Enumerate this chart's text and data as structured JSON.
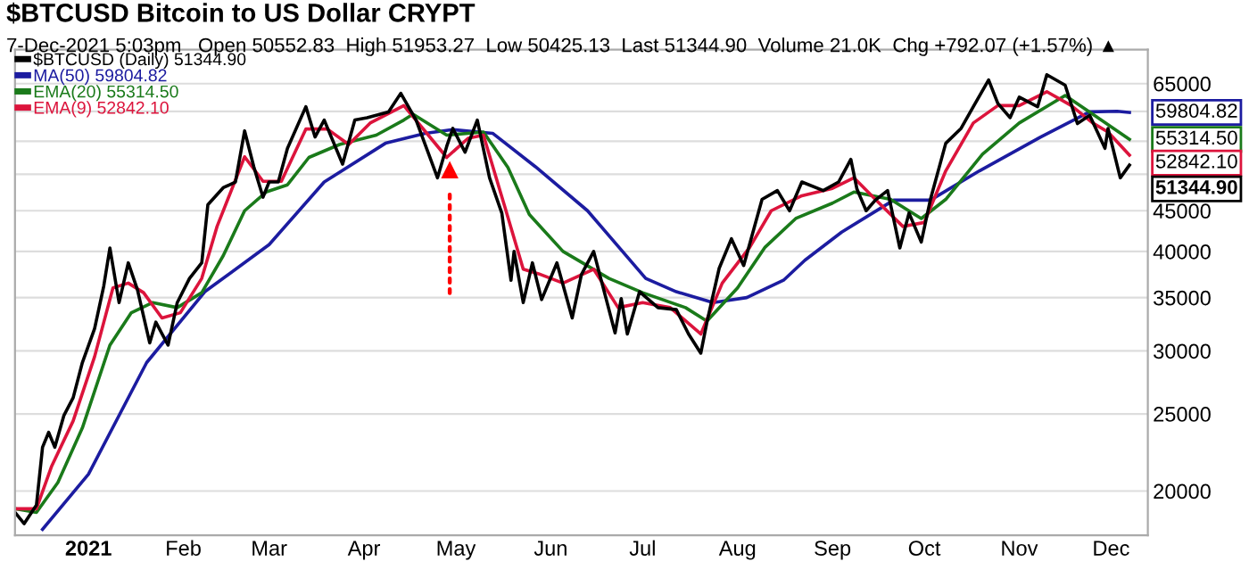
{
  "chart_data": {
    "type": "line",
    "title": "$BTCUSD Bitcoin to US Dollar CRYPT",
    "subtitle": "7-Dec-2021 5:03pm   Open 50552.83  High 51953.27  Low 50425.13  Last 51344.90  Volume 21.0K  Chg +792.07 (+1.57%) ▲",
    "log": "y",
    "grid": "y",
    "legend": "top left",
    "marker": "none",
    "line_style": "solid",
    "xlim": [
      "2020-12-08",
      "2021-12-13"
    ],
    "ylim": [
      17600,
      71700
    ],
    "xticks": [
      {
        "value": "2021-01-01",
        "label": "2021"
      },
      {
        "value": "2021-02-01",
        "label": "Feb"
      },
      {
        "value": "2021-03-01",
        "label": "Mar"
      },
      {
        "value": "2021-04-01",
        "label": "Apr"
      },
      {
        "value": "2021-05-01",
        "label": "May"
      },
      {
        "value": "2021-06-01",
        "label": "Jun"
      },
      {
        "value": "2021-07-01",
        "label": "Jul"
      },
      {
        "value": "2021-08-01",
        "label": "Aug"
      },
      {
        "value": "2021-09-01",
        "label": "Sep"
      },
      {
        "value": "2021-10-01",
        "label": "Oct"
      },
      {
        "value": "2021-11-01",
        "label": "Nov"
      },
      {
        "value": "2021-12-01",
        "label": "Dec"
      }
    ],
    "yticks": [
      20000,
      25000,
      30000,
      35000,
      40000,
      45000,
      {
        "value": 50000,
        "label": null
      },
      {
        "value": 55000,
        "label": null
      },
      {
        "value": 60000,
        "label": null
      },
      65000
    ],
    "series": [
      {
        "name": "MA(50) 59804.82",
        "color": "#1c1ca0",
        "x": [
          "2020-12-17",
          "2021-01-01",
          "2021-01-20",
          "2021-02-08",
          "2021-03-01",
          "2021-03-19",
          "2021-04-08",
          "2021-04-21",
          "2021-04-30",
          "2021-05-13",
          "2021-05-27",
          "2021-06-13",
          "2021-07-02",
          "2021-07-12",
          "2021-07-24",
          "2021-08-04",
          "2021-08-16",
          "2021-08-23",
          "2021-09-04",
          "2021-09-21",
          "2021-10-03",
          "2021-10-19",
          "2021-11-08",
          "2021-11-24",
          "2021-12-03",
          "2021-12-07"
        ],
        "values": [
          17900,
          21000,
          29000,
          35600,
          40800,
          48900,
          54700,
          56300,
          56900,
          56300,
          51100,
          45000,
          37000,
          35600,
          34500,
          35000,
          36800,
          39000,
          42300,
          46400,
          46400,
          50500,
          55700,
          59900,
          60000,
          59804.82
        ]
      },
      {
        "name": "EMA(20) 55314.50",
        "color": "#1a7a1a",
        "x": [
          "2020-12-08",
          "2020-12-15",
          "2020-12-22",
          "2020-12-30",
          "2021-01-08",
          "2021-01-15",
          "2021-01-22",
          "2021-01-30",
          "2021-02-07",
          "2021-02-14",
          "2021-02-21",
          "2021-02-28",
          "2021-03-07",
          "2021-03-14",
          "2021-03-24",
          "2021-04-05",
          "2021-04-14",
          "2021-04-17",
          "2021-04-28",
          "2021-05-10",
          "2021-05-18",
          "2021-05-25",
          "2021-06-05",
          "2021-06-20",
          "2021-07-01",
          "2021-07-15",
          "2021-07-22",
          "2021-08-01",
          "2021-08-10",
          "2021-08-20",
          "2021-09-01",
          "2021-09-08",
          "2021-09-20",
          "2021-09-30",
          "2021-10-08",
          "2021-10-20",
          "2021-11-01",
          "2021-11-12",
          "2021-11-16",
          "2021-11-25",
          "2021-12-07"
        ],
        "values": [
          19000,
          18800,
          20500,
          24000,
          30500,
          33500,
          34500,
          34000,
          35500,
          39500,
          45000,
          47500,
          48500,
          52500,
          54500,
          56000,
          58500,
          59500,
          56000,
          56500,
          51000,
          44500,
          40000,
          37000,
          35500,
          34000,
          32700,
          36000,
          40500,
          44000,
          46000,
          47500,
          46500,
          44000,
          46500,
          53000,
          58000,
          61500,
          62800,
          59500,
          55314.5
        ]
      },
      {
        "name": "EMA(9) 52842.10",
        "color": "#dc143c",
        "x": [
          "2020-12-08",
          "2020-12-15",
          "2020-12-20",
          "2020-12-27",
          "2021-01-03",
          "2021-01-09",
          "2021-01-14",
          "2021-01-19",
          "2021-01-25",
          "2021-01-31",
          "2021-02-07",
          "2021-02-12",
          "2021-02-21",
          "2021-02-27",
          "2021-03-05",
          "2021-03-13",
          "2021-03-20",
          "2021-03-27",
          "2021-04-03",
          "2021-04-14",
          "2021-04-22",
          "2021-04-28",
          "2021-05-05",
          "2021-05-10",
          "2021-05-17",
          "2021-05-23",
          "2021-05-28",
          "2021-06-05",
          "2021-06-15",
          "2021-06-23",
          "2021-07-01",
          "2021-07-10",
          "2021-07-20",
          "2021-07-27",
          "2021-08-05",
          "2021-08-12",
          "2021-08-22",
          "2021-09-01",
          "2021-09-08",
          "2021-09-15",
          "2021-09-24",
          "2021-10-01",
          "2021-10-08",
          "2021-10-17",
          "2021-10-25",
          "2021-11-01",
          "2021-11-10",
          "2021-11-18",
          "2021-11-25",
          "2021-11-30",
          "2021-12-07"
        ],
        "values": [
          19000,
          19000,
          21500,
          24500,
          29500,
          36000,
          36500,
          35500,
          33000,
          33500,
          37000,
          43000,
          52600,
          49000,
          49000,
          57000,
          57000,
          54500,
          58000,
          61000,
          56000,
          52500,
          55500,
          56000,
          45500,
          38000,
          37500,
          36500,
          38000,
          34000,
          34500,
          34000,
          31500,
          36500,
          40500,
          45000,
          47000,
          48000,
          49500,
          46500,
          43000,
          43500,
          50500,
          58000,
          61000,
          61000,
          63500,
          61000,
          58000,
          56500,
          52842.1
        ]
      },
      {
        "name": "$BTCUSD (Daily) 51344.90",
        "color": "#000000",
        "x": [
          "2020-12-08",
          "2020-12-11",
          "2020-12-15",
          "2020-12-17",
          "2020-12-19",
          "2020-12-21",
          "2020-12-24",
          "2020-12-27",
          "2020-12-30",
          "2021-01-03",
          "2021-01-06",
          "2021-01-08",
          "2021-01-11",
          "2021-01-14",
          "2021-01-17",
          "2021-01-21",
          "2021-01-23",
          "2021-01-27",
          "2021-01-30",
          "2021-02-03",
          "2021-02-07",
          "2021-02-09",
          "2021-02-14",
          "2021-02-18",
          "2021-02-21",
          "2021-02-24",
          "2021-02-27",
          "2021-03-01",
          "2021-03-04",
          "2021-03-07",
          "2021-03-13",
          "2021-03-16",
          "2021-03-19",
          "2021-03-25",
          "2021-03-29",
          "2021-04-02",
          "2021-04-09",
          "2021-04-13",
          "2021-04-18",
          "2021-04-25",
          "2021-04-28",
          "2021-04-30",
          "2021-05-04",
          "2021-05-08",
          "2021-05-12",
          "2021-05-16",
          "2021-05-19",
          "2021-05-20",
          "2021-05-23",
          "2021-05-26",
          "2021-05-29",
          "2021-06-03",
          "2021-06-08",
          "2021-06-11",
          "2021-06-15",
          "2021-06-22",
          "2021-06-24",
          "2021-06-26",
          "2021-06-30",
          "2021-07-06",
          "2021-07-12",
          "2021-07-16",
          "2021-07-20",
          "2021-07-22",
          "2021-07-26",
          "2021-07-30",
          "2021-08-03",
          "2021-08-09",
          "2021-08-14",
          "2021-08-18",
          "2021-08-22",
          "2021-08-29",
          "2021-09-03",
          "2021-09-07",
          "2021-09-09",
          "2021-09-12",
          "2021-09-15",
          "2021-09-19",
          "2021-09-23",
          "2021-09-26",
          "2021-09-30",
          "2021-10-03",
          "2021-10-08",
          "2021-10-13",
          "2021-10-17",
          "2021-10-22",
          "2021-10-25",
          "2021-10-29",
          "2021-11-01",
          "2021-11-07",
          "2021-11-10",
          "2021-11-16",
          "2021-11-20",
          "2021-11-24",
          "2021-11-29",
          "2021-11-30",
          "2021-12-04",
          "2021-12-07"
        ],
        "values": [
          18800,
          18200,
          19200,
          22700,
          23700,
          22700,
          24900,
          26200,
          29000,
          32000,
          36200,
          40400,
          34500,
          38700,
          35800,
          30700,
          32600,
          30500,
          34500,
          37000,
          38700,
          45800,
          48100,
          48900,
          56700,
          51100,
          46800,
          48900,
          48900,
          53900,
          60800,
          55700,
          58500,
          51500,
          58500,
          58900,
          59900,
          63200,
          58500,
          49500,
          54200,
          57100,
          53300,
          58500,
          49500,
          44700,
          36800,
          40000,
          34500,
          38700,
          34800,
          38700,
          33000,
          37400,
          40000,
          31600,
          34900,
          31500,
          35600,
          34000,
          33800,
          31500,
          29800,
          32600,
          38100,
          41500,
          38400,
          46500,
          47700,
          45000,
          48900,
          47700,
          48900,
          52200,
          47900,
          45000,
          46400,
          47700,
          40400,
          44700,
          41100,
          46500,
          54700,
          57100,
          60800,
          65700,
          61400,
          58900,
          62500,
          60800,
          66700,
          64700,
          57900,
          59300,
          53900,
          57100,
          49500,
          51344.9
        ]
      }
    ],
    "annotations": [
      {
        "text": "▲",
        "x": "2021-04-29",
        "y": 52600
      },
      {
        "text": "59804.82",
        "x": "2021-12-07",
        "y": 59804.82
      },
      {
        "text": "55314.50",
        "x": "2021-12-07",
        "y": 55314.5
      },
      {
        "text": "52842.10",
        "x": "2021-12-07",
        "y": 52842.1
      },
      {
        "text": "51344.90",
        "x": "2021-12-07",
        "y": 51344.9
      }
    ]
  }
}
